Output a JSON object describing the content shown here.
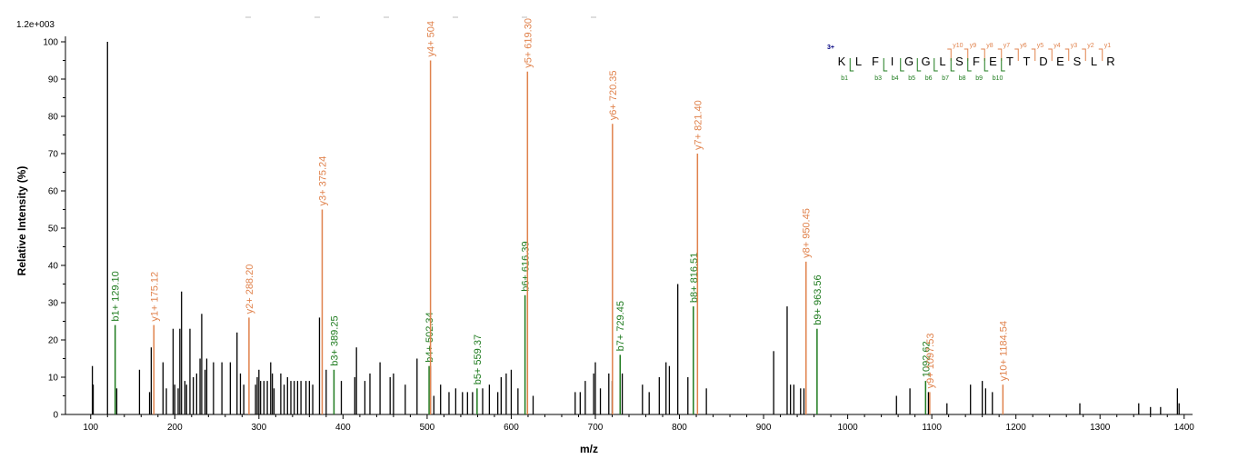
{
  "chart_data": {
    "type": "bar",
    "scale_label": "1.2e+003",
    "xlabel": "m/z",
    "ylabel": "Relative   Intensity (%)",
    "xlim": [
      70,
      1410
    ],
    "ylim": [
      0,
      100
    ],
    "xticks": [
      "100",
      "200",
      "300",
      "400",
      "500",
      "600",
      "700",
      "800",
      "900",
      "1000",
      "1100",
      "1200",
      "1300",
      "1400"
    ],
    "yticks": [
      "0",
      "10",
      "20",
      "30",
      "40",
      "50",
      "60",
      "70",
      "80",
      "90",
      "100"
    ],
    "colors": {
      "unassigned": "#000000",
      "b_ion": "#1e7b1e",
      "y_ion": "#e0824c",
      "charge": "#000080"
    },
    "peaks": [
      [
        102,
        13
      ],
      [
        103,
        8
      ],
      [
        120,
        100
      ],
      [
        131,
        7
      ],
      [
        158,
        12
      ],
      [
        170,
        6
      ],
      [
        172,
        18
      ],
      [
        186,
        14
      ],
      [
        190,
        7
      ],
      [
        198,
        23
      ],
      [
        200,
        8
      ],
      [
        204,
        7
      ],
      [
        206,
        23
      ],
      [
        208,
        33
      ],
      [
        212,
        9
      ],
      [
        214,
        8
      ],
      [
        218,
        23
      ],
      [
        222,
        10
      ],
      [
        226,
        11
      ],
      [
        230,
        15
      ],
      [
        232,
        27
      ],
      [
        236,
        12
      ],
      [
        238,
        15
      ],
      [
        246,
        14
      ],
      [
        256,
        14
      ],
      [
        266,
        14
      ],
      [
        274,
        22
      ],
      [
        278,
        11
      ],
      [
        282,
        8
      ],
      [
        296,
        8
      ],
      [
        298,
        10
      ],
      [
        300,
        12
      ],
      [
        302,
        9
      ],
      [
        306,
        9
      ],
      [
        310,
        9
      ],
      [
        314,
        14
      ],
      [
        316,
        11
      ],
      [
        318,
        7
      ],
      [
        326,
        11
      ],
      [
        330,
        8
      ],
      [
        334,
        10
      ],
      [
        338,
        9
      ],
      [
        342,
        9
      ],
      [
        346,
        9
      ],
      [
        350,
        9
      ],
      [
        356,
        9
      ],
      [
        360,
        9
      ],
      [
        364,
        8
      ],
      [
        372,
        26
      ],
      [
        380,
        12
      ],
      [
        398,
        9
      ],
      [
        414,
        10
      ],
      [
        416,
        18
      ],
      [
        426,
        9
      ],
      [
        432,
        11
      ],
      [
        444,
        14
      ],
      [
        456,
        10
      ],
      [
        460,
        11
      ],
      [
        474,
        8
      ],
      [
        488,
        15
      ],
      [
        504,
        13
      ],
      [
        508,
        5
      ],
      [
        516,
        8
      ],
      [
        526,
        6
      ],
      [
        534,
        7
      ],
      [
        542,
        6
      ],
      [
        548,
        6
      ],
      [
        554,
        6
      ],
      [
        566,
        7
      ],
      [
        574,
        8
      ],
      [
        584,
        6
      ],
      [
        588,
        10
      ],
      [
        594,
        11
      ],
      [
        600,
        12
      ],
      [
        608,
        7
      ],
      [
        626,
        5
      ],
      [
        676,
        6
      ],
      [
        682,
        6
      ],
      [
        688,
        9
      ],
      [
        698,
        11
      ],
      [
        700,
        14
      ],
      [
        706,
        7
      ],
      [
        716,
        11
      ],
      [
        720,
        9
      ],
      [
        732,
        11
      ],
      [
        756,
        8
      ],
      [
        764,
        6
      ],
      [
        776,
        10
      ],
      [
        784,
        14
      ],
      [
        788,
        13
      ],
      [
        798,
        35
      ],
      [
        810,
        10
      ],
      [
        832,
        7
      ],
      [
        912,
        17
      ],
      [
        928,
        29
      ],
      [
        932,
        8
      ],
      [
        936,
        8
      ],
      [
        944,
        7
      ],
      [
        948,
        7
      ],
      [
        1058,
        5
      ],
      [
        1074,
        7
      ],
      [
        1096,
        6
      ],
      [
        1118,
        3
      ],
      [
        1146,
        8
      ],
      [
        1160,
        9
      ],
      [
        1164,
        7
      ],
      [
        1172,
        6
      ],
      [
        1276,
        3
      ],
      [
        1346,
        3
      ],
      [
        1360,
        2
      ],
      [
        1372,
        2
      ],
      [
        1392,
        7
      ],
      [
        1394,
        3
      ]
    ],
    "annotated_peaks": [
      {
        "mz": 129.1,
        "y": 24,
        "ion": "b",
        "label": "b1+ 129.10"
      },
      {
        "mz": 175.12,
        "y": 24,
        "ion": "y",
        "label": "y1+ 175.12"
      },
      {
        "mz": 288.2,
        "y": 26,
        "ion": "y",
        "label": "y2+ 288.20"
      },
      {
        "mz": 375.24,
        "y": 55,
        "ion": "y",
        "label": "y3+ 375.24"
      },
      {
        "mz": 389.25,
        "y": 12,
        "ion": "b",
        "label": "b3+ 389.25"
      },
      {
        "mz": 502.34,
        "y": 13,
        "ion": "b",
        "label": "b4+ 502.34"
      },
      {
        "mz": 504,
        "y": 95,
        "ion": "y",
        "label": "y4+ 504"
      },
      {
        "mz": 559.37,
        "y": 7,
        "ion": "b",
        "label": "b5+ 559.37"
      },
      {
        "mz": 616.39,
        "y": 32,
        "ion": "b",
        "label": "b6+ 616.39"
      },
      {
        "mz": 619.3,
        "y": 92,
        "ion": "y",
        "label": "y5+ 619.30"
      },
      {
        "mz": 720.35,
        "y": 78,
        "ion": "y",
        "label": "y6+ 720.35"
      },
      {
        "mz": 729.45,
        "y": 16,
        "ion": "b",
        "label": "b7+ 729.45"
      },
      {
        "mz": 816.51,
        "y": 29,
        "ion": "b",
        "label": "b8+ 816.51"
      },
      {
        "mz": 821.4,
        "y": 70,
        "ion": "y",
        "label": "y7+ 821.40"
      },
      {
        "mz": 950.45,
        "y": 41,
        "ion": "y",
        "label": "y8+ 950.45"
      },
      {
        "mz": 963.56,
        "y": 23,
        "ion": "b",
        "label": "b9+ 963.56"
      },
      {
        "mz": 1092.62,
        "y": 9,
        "ion": "b",
        "label": "1092.62"
      },
      {
        "mz": 1097.53,
        "y": 6,
        "ion": "y",
        "label": "y9+ 1097.53"
      },
      {
        "mz": 1184.54,
        "y": 8,
        "ion": "y",
        "label": "y10+ 1184.54"
      }
    ],
    "peptide": {
      "charge_label": "3+",
      "residues": [
        "K",
        "L",
        "F",
        "I",
        "G",
        "G",
        "L",
        "S",
        "F",
        "E",
        "T",
        "T",
        "D",
        "E",
        "S",
        "L",
        "R"
      ],
      "y_ions": [
        "y10",
        "y9",
        "y8",
        "y7",
        "y6",
        "y5",
        "y4",
        "y3",
        "y2",
        "y1"
      ],
      "b_ions": [
        "b1",
        "",
        "b3",
        "b4",
        "b5",
        "b6",
        "b7",
        "b8",
        "b9",
        "b10"
      ]
    }
  }
}
